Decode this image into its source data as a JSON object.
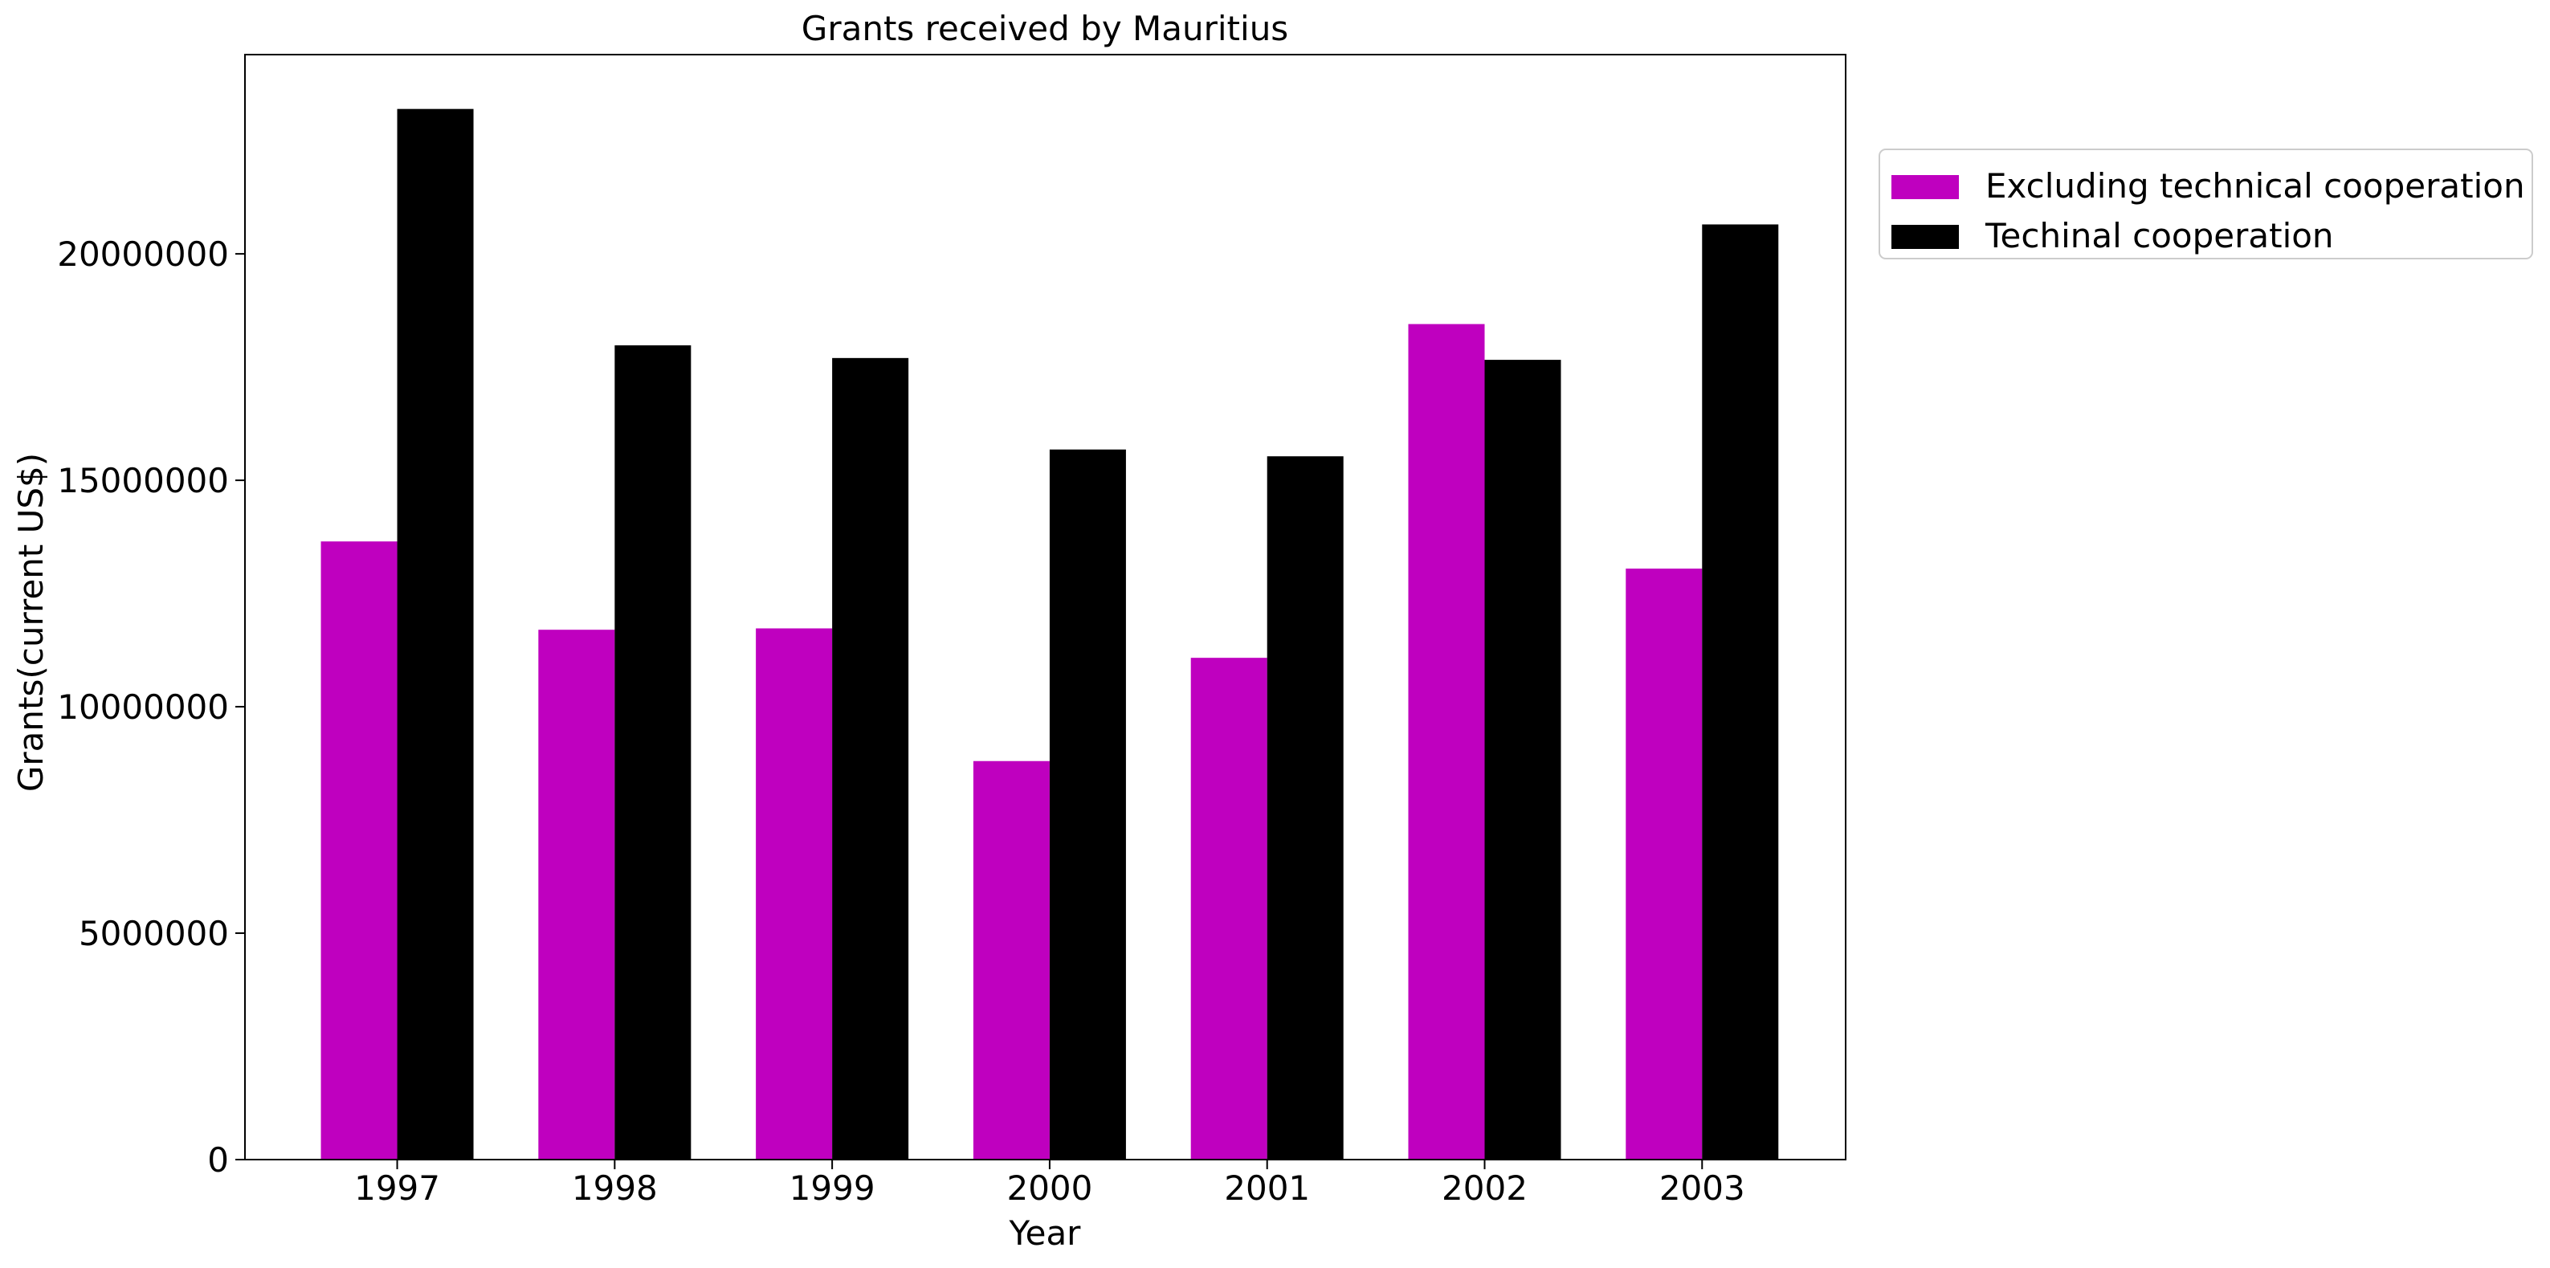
{
  "chart_data": {
    "type": "bar",
    "title": "Grants received by Mauritius",
    "xlabel": "Year",
    "ylabel": "Grants(current US$)",
    "categories": [
      "1997",
      "1998",
      "1999",
      "2000",
      "2001",
      "2002",
      "2003"
    ],
    "series": [
      {
        "name": "Excluding technical cooperation",
        "color": "#bf00bf",
        "values": [
          13650000,
          11700000,
          11730000,
          8800000,
          11080000,
          18450000,
          13050000
        ]
      },
      {
        "name": "Techinal cooperation",
        "color": "#000000",
        "values": [
          23200000,
          17980000,
          17700000,
          15680000,
          15530000,
          17660000,
          20650000
        ]
      }
    ],
    "ylim": [
      0,
      24400000
    ],
    "yticks": [
      "0",
      "5000000",
      "10000000",
      "15000000",
      "20000000"
    ],
    "grid": false,
    "legend_position": "outside-upper-right"
  }
}
